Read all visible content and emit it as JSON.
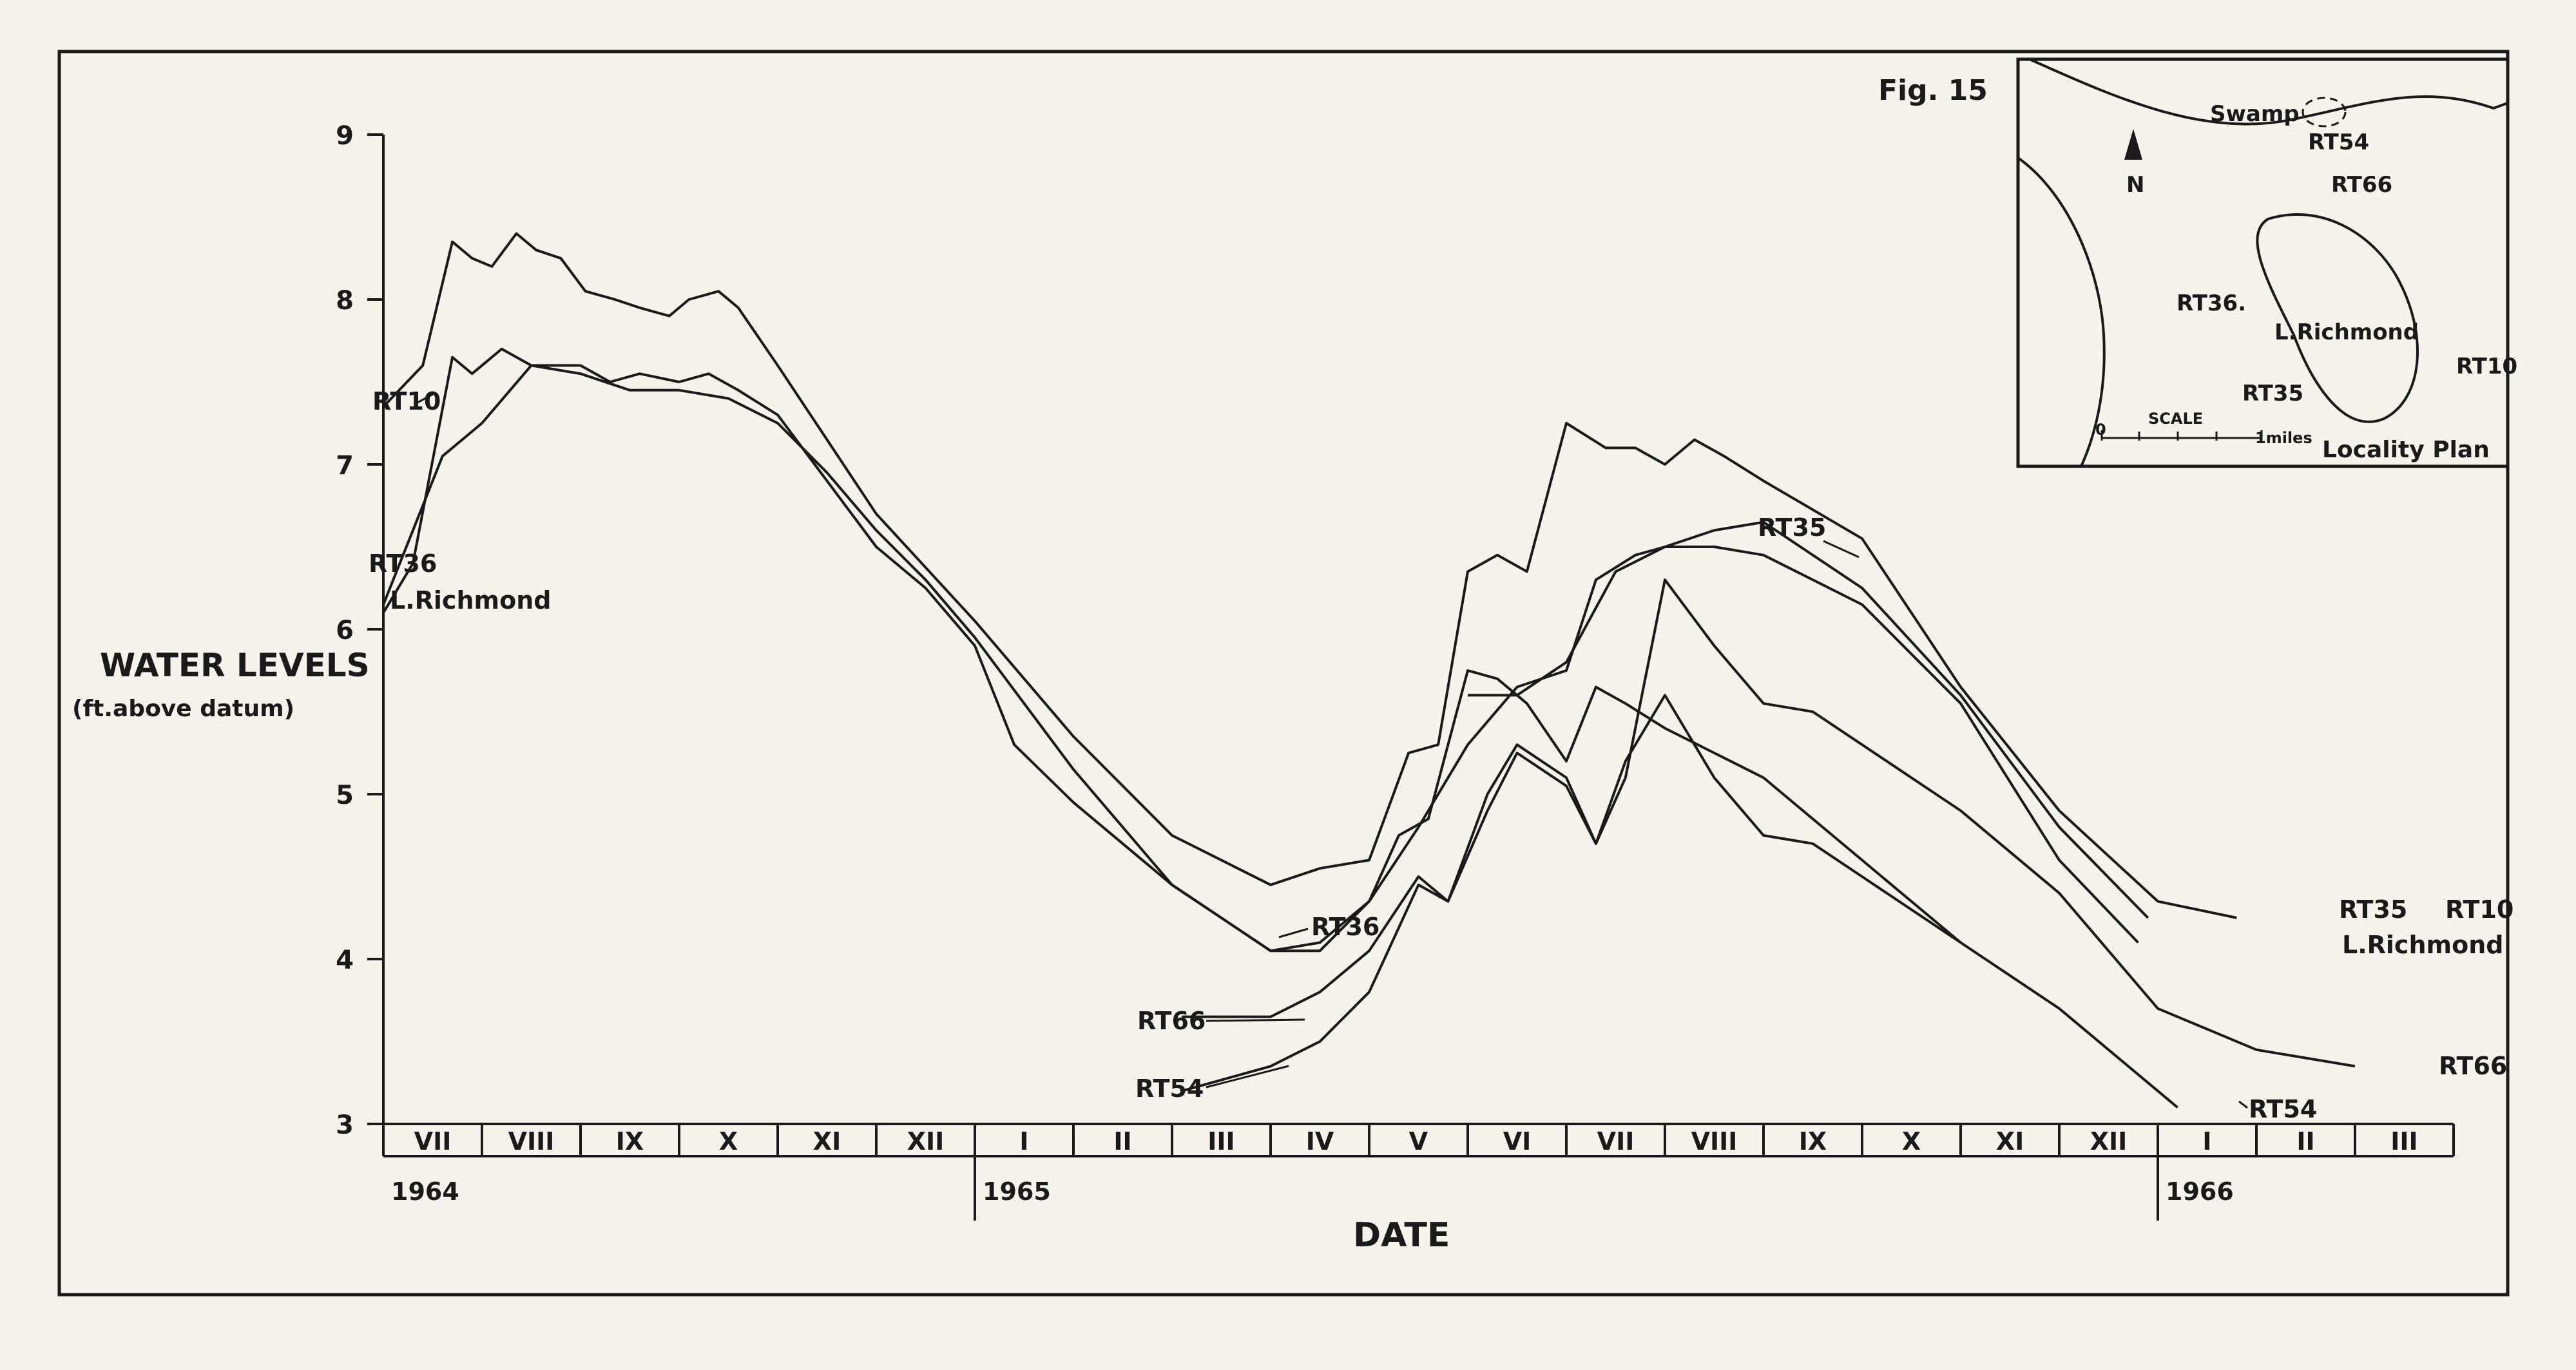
{
  "chart_data": {
    "type": "line",
    "figure_label": "Fig. 15",
    "ylabel": "WATER LEVELS",
    "ylabel_sub": "(ft.above datum)",
    "xlabel": "DATE",
    "ylim": [
      3,
      9
    ],
    "yticks": [
      3,
      4,
      5,
      6,
      7,
      8,
      9
    ],
    "months": [
      "VII",
      "VIII",
      "IX",
      "X",
      "XI",
      "XII",
      "I",
      "II",
      "III",
      "IV",
      "V",
      "VI",
      "VII",
      "VIII",
      "IX",
      "X",
      "XI",
      "XII",
      "I",
      "II",
      "III"
    ],
    "years": [
      {
        "label": "1964",
        "month_index": 0
      },
      {
        "label": "1965",
        "month_index": 6
      },
      {
        "label": "1966",
        "month_index": 18
      }
    ],
    "series": [
      {
        "name": "RT10",
        "points": [
          [
            0.0,
            7.35
          ],
          [
            0.4,
            7.6
          ],
          [
            0.7,
            8.35
          ],
          [
            0.9,
            8.25
          ],
          [
            1.1,
            8.2
          ],
          [
            1.35,
            8.4
          ],
          [
            1.55,
            8.3
          ],
          [
            1.8,
            8.25
          ],
          [
            2.05,
            8.05
          ],
          [
            2.35,
            8.0
          ],
          [
            2.6,
            7.95
          ],
          [
            2.9,
            7.9
          ],
          [
            3.1,
            8.0
          ],
          [
            3.4,
            8.05
          ],
          [
            3.6,
            7.95
          ],
          [
            4.0,
            7.6
          ],
          [
            5.0,
            6.7
          ],
          [
            6.0,
            6.05
          ],
          [
            7.0,
            5.35
          ],
          [
            8.0,
            4.75
          ],
          [
            9.0,
            4.45
          ],
          [
            9.5,
            4.55
          ],
          [
            10.0,
            4.6
          ],
          [
            10.4,
            5.25
          ],
          [
            10.7,
            5.3
          ],
          [
            11.0,
            6.35
          ],
          [
            11.3,
            6.45
          ],
          [
            11.6,
            6.35
          ],
          [
            12.0,
            7.25
          ],
          [
            12.4,
            7.1
          ],
          [
            12.7,
            7.1
          ],
          [
            13.0,
            7.0
          ],
          [
            13.3,
            7.15
          ],
          [
            13.6,
            7.05
          ],
          [
            14.0,
            6.9
          ],
          [
            15.0,
            6.55
          ],
          [
            16.0,
            5.65
          ],
          [
            17.0,
            4.9
          ],
          [
            18.0,
            4.35
          ],
          [
            18.8,
            4.25
          ]
        ]
      },
      {
        "name": "RT36",
        "points": [
          [
            0.0,
            6.1
          ],
          [
            0.3,
            6.4
          ],
          [
            0.7,
            7.65
          ],
          [
            0.9,
            7.55
          ],
          [
            1.2,
            7.7
          ],
          [
            1.5,
            7.6
          ],
          [
            2.0,
            7.6
          ],
          [
            2.3,
            7.5
          ],
          [
            2.6,
            7.55
          ],
          [
            3.0,
            7.5
          ],
          [
            3.3,
            7.55
          ],
          [
            3.6,
            7.45
          ],
          [
            4.0,
            7.3
          ],
          [
            4.5,
            6.9
          ],
          [
            5.0,
            6.5
          ],
          [
            5.5,
            6.25
          ],
          [
            6.0,
            5.9
          ],
          [
            6.4,
            5.3
          ],
          [
            7.0,
            4.95
          ],
          [
            8.0,
            4.45
          ],
          [
            9.0,
            4.05
          ],
          [
            9.5,
            4.05
          ],
          [
            10.0,
            4.35
          ],
          [
            10.3,
            4.75
          ],
          [
            10.6,
            4.85
          ],
          [
            11.0,
            5.75
          ],
          [
            11.3,
            5.7
          ],
          [
            11.6,
            5.55
          ],
          [
            12.0,
            5.2
          ],
          [
            12.3,
            5.65
          ],
          [
            12.6,
            5.55
          ],
          [
            13.0,
            5.4
          ],
          [
            13.5,
            5.25
          ],
          [
            14.0,
            5.1
          ],
          [
            15.0,
            4.6
          ],
          [
            16.0,
            4.1
          ]
        ]
      },
      {
        "name": "L.Richmond",
        "points": [
          [
            0.0,
            6.15
          ],
          [
            0.3,
            6.6
          ],
          [
            0.6,
            7.05
          ],
          [
            1.0,
            7.25
          ],
          [
            1.5,
            7.6
          ],
          [
            2.0,
            7.55
          ],
          [
            2.5,
            7.45
          ],
          [
            3.0,
            7.45
          ],
          [
            3.5,
            7.4
          ],
          [
            4.0,
            7.25
          ],
          [
            4.5,
            6.95
          ],
          [
            5.0,
            6.6
          ],
          [
            5.5,
            6.3
          ],
          [
            6.0,
            5.95
          ],
          [
            7.0,
            5.15
          ],
          [
            8.0,
            4.45
          ],
          [
            9.0,
            4.05
          ],
          [
            9.5,
            4.1
          ],
          [
            10.0,
            4.35
          ],
          [
            10.5,
            4.8
          ],
          [
            11.0,
            5.3
          ],
          [
            11.5,
            5.65
          ],
          [
            12.0,
            5.75
          ],
          [
            12.3,
            6.3
          ],
          [
            12.7,
            6.45
          ],
          [
            13.0,
            6.5
          ],
          [
            13.5,
            6.5
          ],
          [
            14.0,
            6.45
          ],
          [
            15.0,
            6.15
          ],
          [
            16.0,
            5.55
          ],
          [
            17.0,
            4.6
          ],
          [
            17.8,
            4.1
          ]
        ]
      },
      {
        "name": "RT35",
        "points": [
          [
            11.0,
            5.6
          ],
          [
            11.5,
            5.6
          ],
          [
            12.0,
            5.8
          ],
          [
            12.5,
            6.35
          ],
          [
            13.0,
            6.5
          ],
          [
            13.5,
            6.6
          ],
          [
            14.0,
            6.65
          ],
          [
            15.0,
            6.25
          ],
          [
            16.0,
            5.6
          ],
          [
            17.0,
            4.8
          ],
          [
            17.9,
            4.25
          ]
        ]
      },
      {
        "name": "RT66",
        "points": [
          [
            8.1,
            3.65
          ],
          [
            9.0,
            3.65
          ],
          [
            9.5,
            3.8
          ],
          [
            10.0,
            4.05
          ],
          [
            10.5,
            4.5
          ],
          [
            10.8,
            4.35
          ],
          [
            11.2,
            4.9
          ],
          [
            11.5,
            5.25
          ],
          [
            12.0,
            5.05
          ],
          [
            12.3,
            4.7
          ],
          [
            12.6,
            5.1
          ],
          [
            13.0,
            6.3
          ],
          [
            13.5,
            5.9
          ],
          [
            14.0,
            5.55
          ],
          [
            14.5,
            5.5
          ],
          [
            15.0,
            5.3
          ],
          [
            16.0,
            4.9
          ],
          [
            17.0,
            4.4
          ],
          [
            18.0,
            3.7
          ],
          [
            19.0,
            3.45
          ],
          [
            20.0,
            3.35
          ]
        ]
      },
      {
        "name": "RT54",
        "points": [
          [
            8.1,
            3.2
          ],
          [
            9.0,
            3.35
          ],
          [
            9.5,
            3.5
          ],
          [
            10.0,
            3.8
          ],
          [
            10.5,
            4.45
          ],
          [
            10.8,
            4.35
          ],
          [
            11.2,
            5.0
          ],
          [
            11.5,
            5.3
          ],
          [
            12.0,
            5.1
          ],
          [
            12.3,
            4.7
          ],
          [
            12.6,
            5.2
          ],
          [
            13.0,
            5.6
          ],
          [
            13.5,
            5.1
          ],
          [
            14.0,
            4.75
          ],
          [
            14.5,
            4.7
          ],
          [
            15.0,
            4.5
          ],
          [
            16.0,
            4.1
          ],
          [
            17.0,
            3.7
          ],
          [
            18.0,
            3.2
          ],
          [
            18.2,
            3.1
          ]
        ]
      }
    ],
    "labels": [
      {
        "text": "RT10",
        "series": "RT10"
      },
      {
        "text": "RT36",
        "series": "RT36"
      },
      {
        "text": "L.Richmond",
        "series": "L.Richmond"
      },
      {
        "text": "RT36",
        "series": "RT36"
      },
      {
        "text": "RT66",
        "series": "RT66"
      },
      {
        "text": "RT54",
        "series": "RT54"
      },
      {
        "text": "RT35",
        "series": "RT35"
      },
      {
        "text": "RT35",
        "series": "RT35"
      },
      {
        "text": "RT10",
        "series": "RT10"
      },
      {
        "text": "L.Richmond",
        "series": "L.Richmond"
      },
      {
        "text": "RT66",
        "series": "RT66"
      },
      {
        "text": "RT54",
        "series": "RT54"
      }
    ],
    "inset": {
      "title": "Locality Plan",
      "north": "N",
      "scale_label": "SCALE",
      "scale_zero": "0",
      "scale_end": "1miles",
      "places": [
        "Swamp",
        "RT54",
        "RT66",
        "RT36.",
        "L.Richmond",
        "RT35",
        "RT10"
      ]
    }
  }
}
